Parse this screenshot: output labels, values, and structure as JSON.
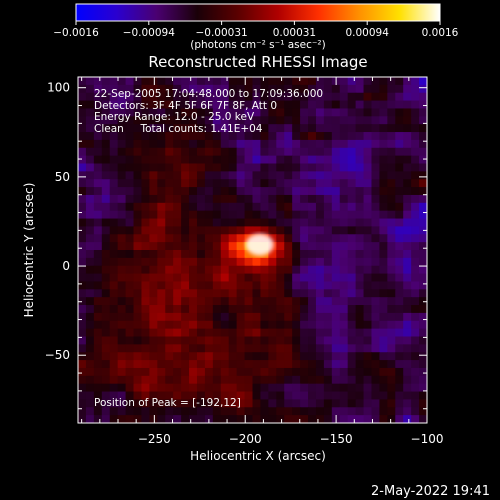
{
  "colorbar": {
    "ticks": [
      "-0.0016",
      "-0.00094",
      "-0.00031",
      "0.00031",
      "0.00094",
      "0.0016"
    ],
    "unit_label": "(photons cm⁻² s⁻¹ asec⁻²)",
    "stops": [
      "#0000ff",
      "#2a00d0",
      "#4a0070",
      "#1a0008",
      "#5a0000",
      "#b00000",
      "#ff3000",
      "#ff9000",
      "#ffe000",
      "#ffffff"
    ]
  },
  "chart_data": {
    "type": "heatmap",
    "title": "Reconstructed RHESSI Image",
    "xlabel": "Heliocentric X (arcsec)",
    "ylabel": "Heliocentric Y (arcsec)",
    "xlim": [
      -292,
      -100
    ],
    "ylim": [
      -88,
      106
    ],
    "x_ticks": [
      -250,
      -200,
      -150,
      -100
    ],
    "y_ticks": [
      100,
      50,
      0,
      -50
    ],
    "x_tick_labels": [
      "−250",
      "−200",
      "−150",
      "−100"
    ],
    "y_tick_labels": [
      "100",
      "50",
      "0",
      "−50"
    ],
    "grid": false,
    "peak": {
      "x": -192,
      "y": 12
    },
    "annotations": [
      "22-Sep-2005 17:04:48.000 to 17:09:36.000",
      "Detectors: 3F 4F 5F 6F 7F 8F, Att 0",
      "Energy Range: 12.0 - 25.0 keV",
      "Clean     Total counts: 1.41E+04"
    ],
    "peak_label": "Position of Peak = [-192,12]"
  },
  "footer": {
    "timestamp": "2-May-2022 19:41"
  }
}
